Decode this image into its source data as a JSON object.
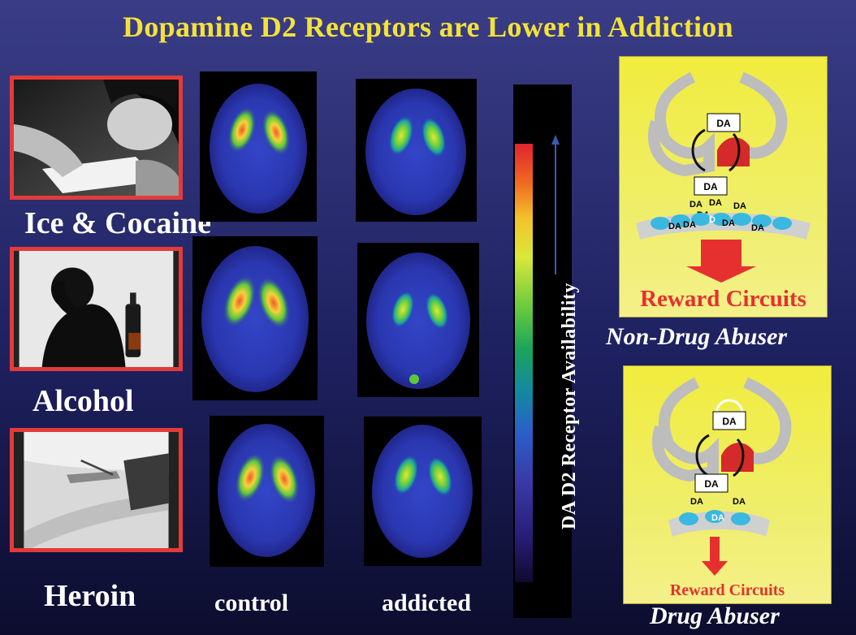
{
  "title": "Dopamine D2 Receptors are Lower in Addiction",
  "rows": [
    {
      "drug": "Ice & Cocaine",
      "photo_icon": "person-snorting-powder-photo"
    },
    {
      "drug": "Alcohol",
      "photo_icon": "man-with-bottle-photo"
    },
    {
      "drug": "Heroin",
      "photo_icon": "arm-injection-photo"
    }
  ],
  "columns": {
    "control": "control",
    "addicted": "addicted"
  },
  "colorbar": {
    "label": "DA D2 Receptor Availability",
    "colors": [
      "#e0242c",
      "#f4c22a",
      "#63c83e",
      "#138aa0",
      "#3a3aa8",
      "#100a30"
    ]
  },
  "diagrams": {
    "non_abuser": {
      "caption": "Non-Drug Abuser",
      "reward": "Reward Circuits",
      "box_top": "DA",
      "box_bottom": "DA",
      "da_labels": [
        "DA",
        "DA",
        "DA",
        "DA",
        "DA",
        "DA",
        "DA",
        "D",
        "DA"
      ]
    },
    "abuser": {
      "caption": "Drug Abuser",
      "reward": "Reward Circuits",
      "box_top": "DA",
      "box_bottom": "DA",
      "da_labels": [
        "DA",
        "DA",
        "DA"
      ]
    }
  },
  "colors": {
    "title": "#f4e23a",
    "photo_border": "#e43a3a",
    "reward_text": "#e63030",
    "diagram_bg": "#f1ec3e"
  }
}
